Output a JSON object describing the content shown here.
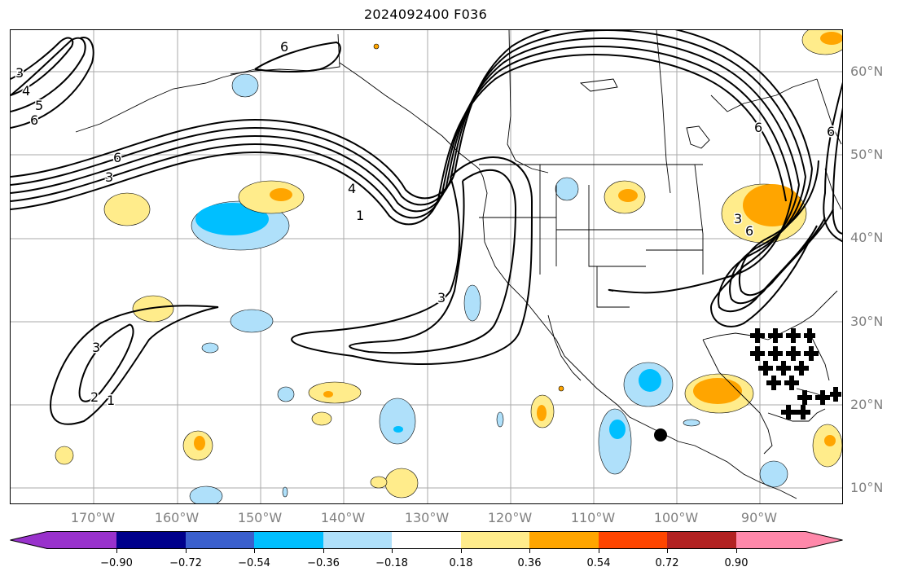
{
  "title": "2024092400 F036",
  "lat_labels": [
    "60°N",
    "50°N",
    "40°N",
    "30°N",
    "20°N",
    "10°N"
  ],
  "lon_labels": [
    "170°W",
    "160°W",
    "150°W",
    "140°W",
    "130°W",
    "120°W",
    "110°W",
    "100°W",
    "90°W"
  ],
  "contour_labels": [
    "6",
    "3",
    "4",
    "5",
    "6",
    "6",
    "3",
    "1",
    "4",
    "3",
    "3",
    "1",
    "2",
    "3",
    "6",
    "6",
    "6"
  ],
  "colorbar": {
    "ticks": [
      "−0.90",
      "−0.72",
      "−0.54",
      "−0.36",
      "−0.18",
      "0.18",
      "0.36",
      "0.54",
      "0.72",
      "0.90"
    ],
    "colors": [
      "#9932cc",
      "#00008b",
      "#3a5fcd",
      "#00bfff",
      "#afe0fa",
      "#ffffff",
      "#ffec8b",
      "#ffa500",
      "#ff4500",
      "#b22222",
      "#ff88aa"
    ]
  }
}
